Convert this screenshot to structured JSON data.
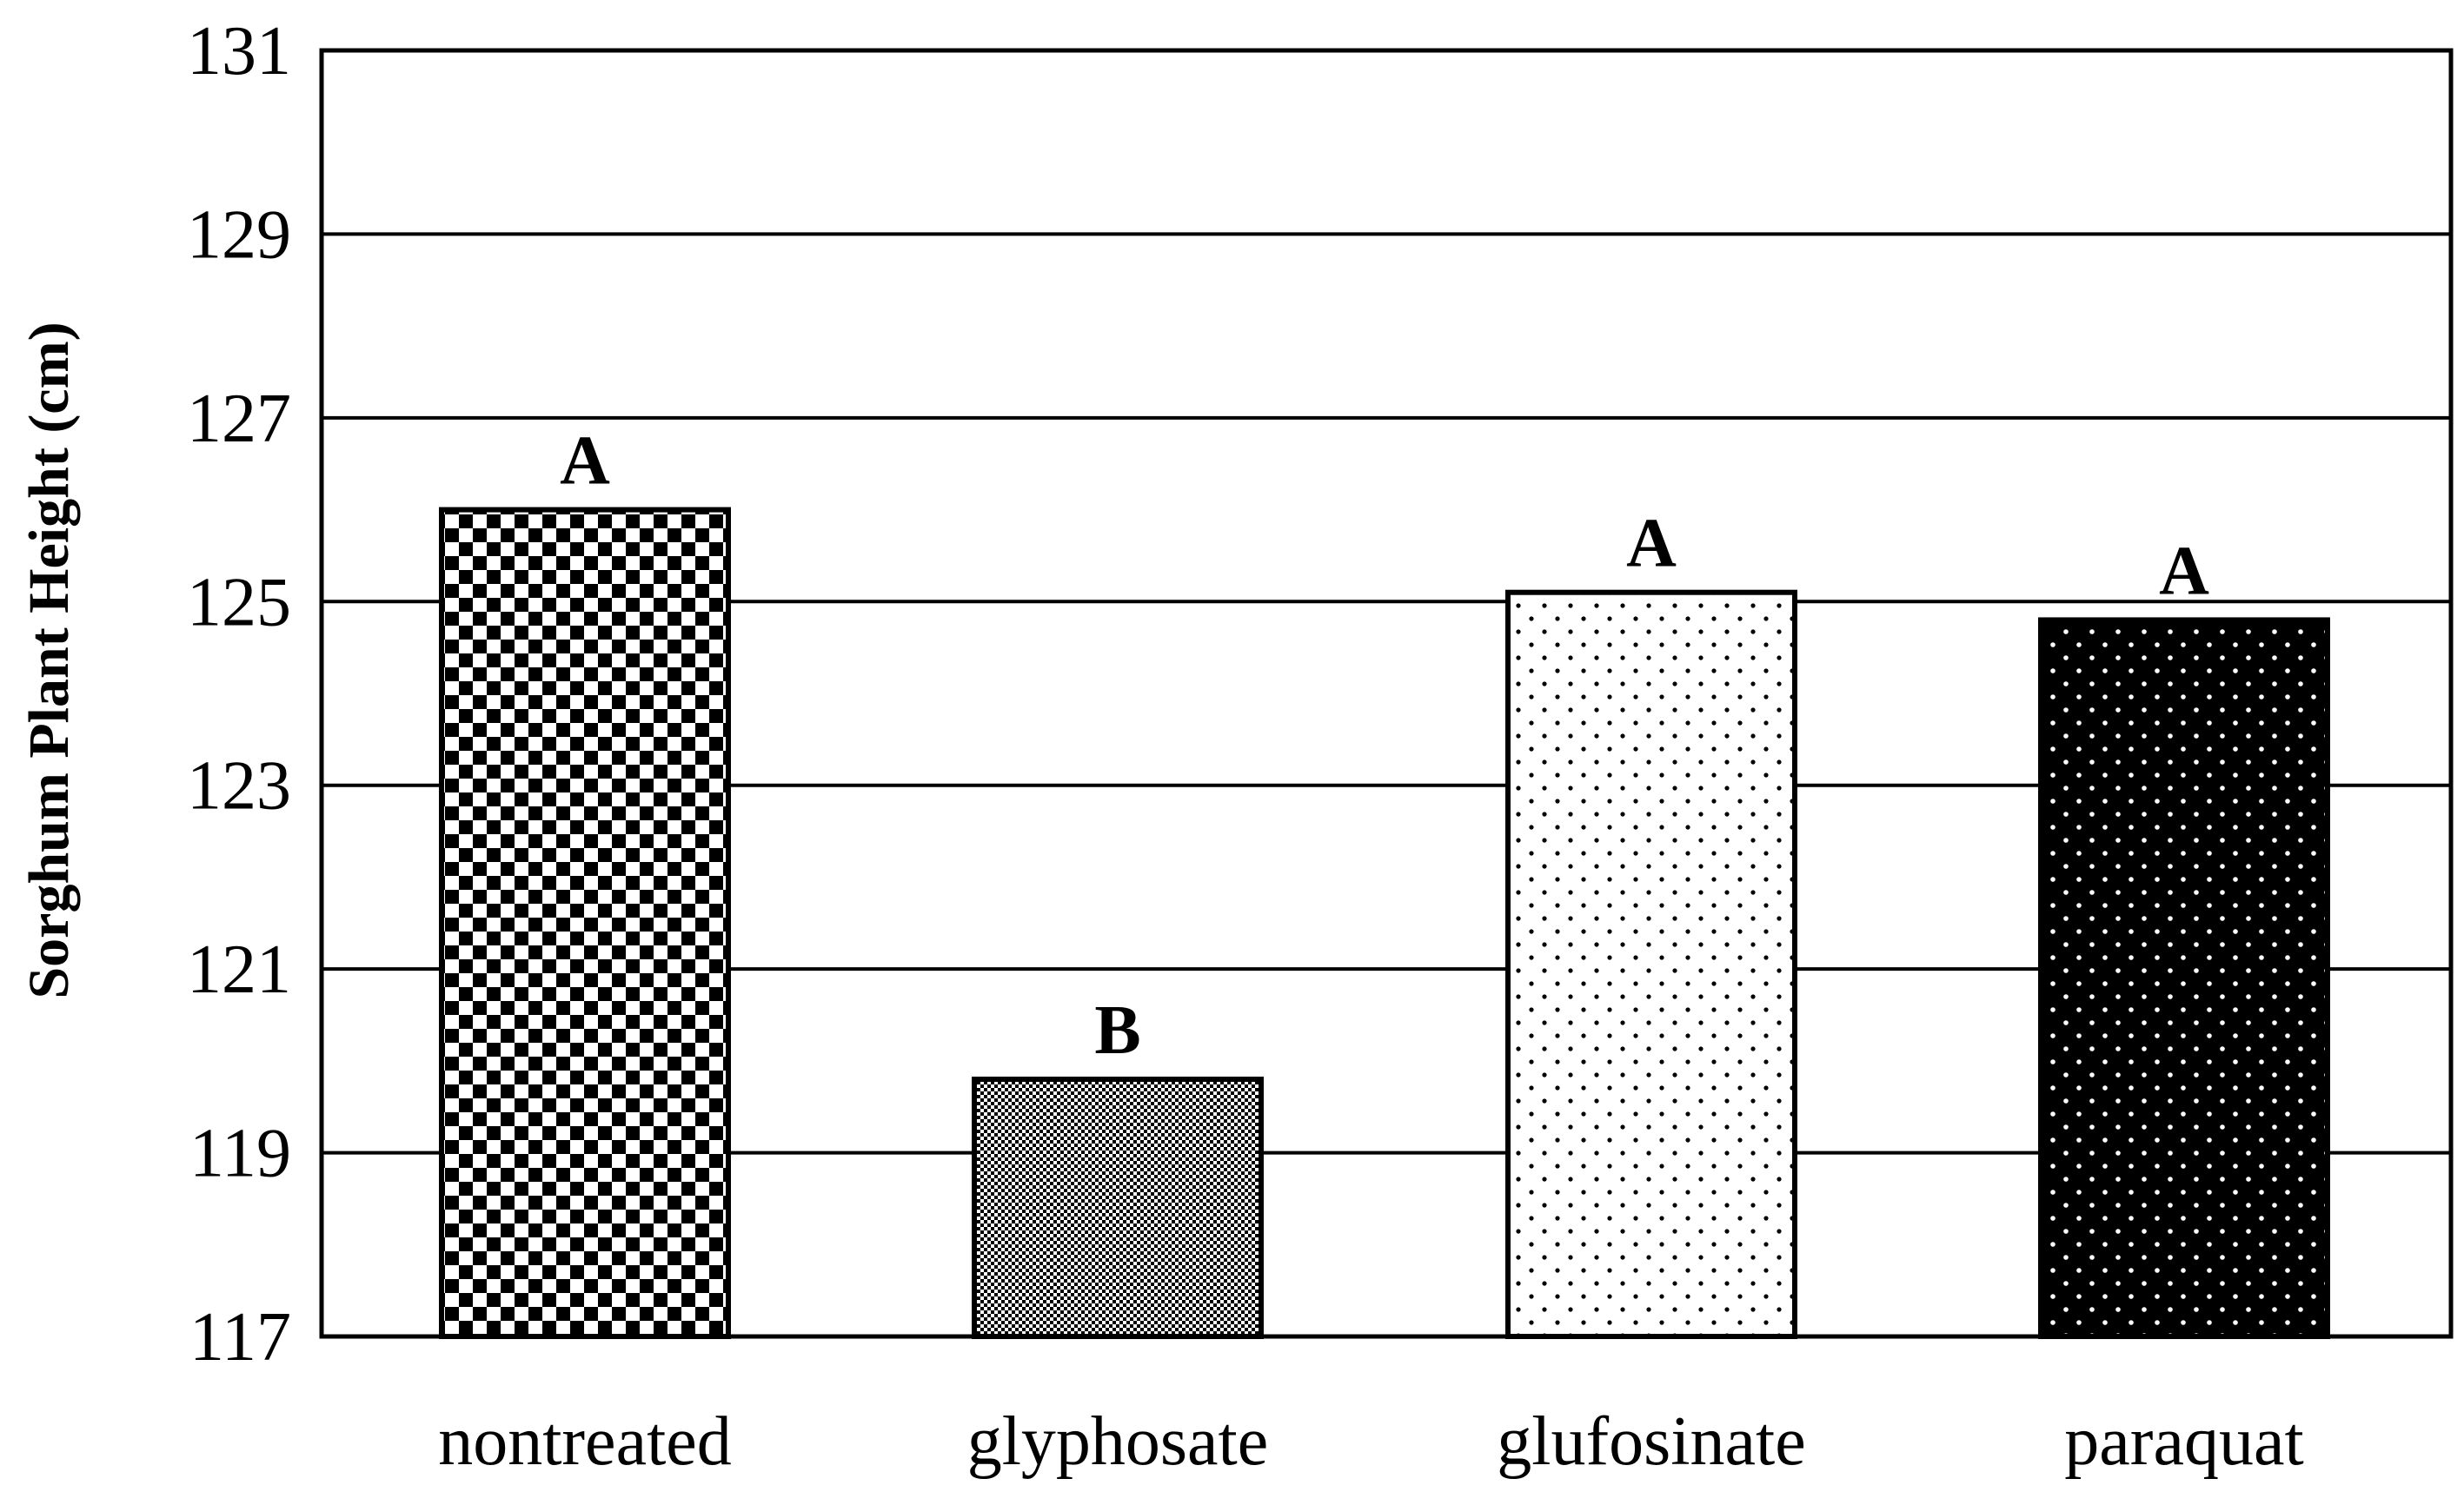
{
  "chart_data": {
    "type": "bar",
    "categories": [
      "nontreated",
      "glyphosate",
      "glufosinate",
      "paraquat"
    ],
    "values": [
      126.0,
      119.8,
      125.1,
      124.8
    ],
    "significance_letters": [
      "A",
      "B",
      "A",
      "A"
    ],
    "title": "",
    "xlabel": "",
    "ylabel": "Sorghum Plant Height (cm)",
    "ylim": [
      117,
      131
    ],
    "yticks": [
      117,
      119,
      121,
      123,
      125,
      127,
      129,
      131
    ],
    "grid": "horizontal",
    "legend": "none",
    "bar_fills": [
      "checkerboard",
      "fine-dots",
      "sparse-dots",
      "black-with-white-dots"
    ]
  }
}
